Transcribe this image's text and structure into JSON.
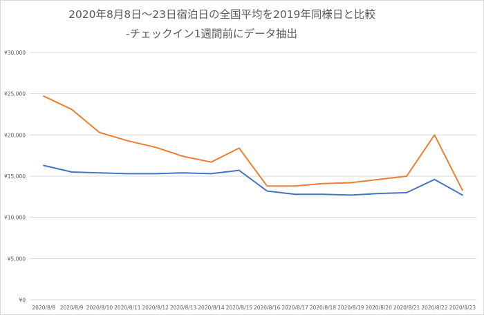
{
  "chart_data": {
    "type": "line",
    "title_line1": "2020年8月8日〜23日宿泊日の全国平均を2019年同様日と比較",
    "title_line2": "-チェックイン1週間前にデータ抽出",
    "categories": [
      "2020/8/8",
      "2020/8/9",
      "2020/8/10",
      "2020/8/11",
      "2020/8/12",
      "2020/8/13",
      "2020/8/14",
      "2020/8/15",
      "2020/8/16",
      "2020/8/17",
      "2020/8/18",
      "2020/8/19",
      "2020/8/20",
      "2020/8/21",
      "2020/8/22",
      "2020/8/23"
    ],
    "y_ticks": [
      "¥0",
      "¥5,000",
      "¥10,000",
      "¥15,000",
      "¥20,000",
      "¥25,000",
      "¥30,000"
    ],
    "ylim": [
      0,
      30000
    ],
    "grid": true,
    "series": [
      {
        "color": "#ED7D31",
        "values": [
          24700,
          23100,
          20300,
          19300,
          18500,
          17400,
          16700,
          18400,
          13800,
          13800,
          14100,
          14200,
          14600,
          15000,
          20000,
          13300
        ]
      },
      {
        "color": "#4472C4",
        "values": [
          16300,
          15500,
          15400,
          15300,
          15300,
          15400,
          15300,
          15700,
          13200,
          12800,
          12800,
          12700,
          12900,
          13000,
          14600,
          12700
        ]
      }
    ]
  }
}
